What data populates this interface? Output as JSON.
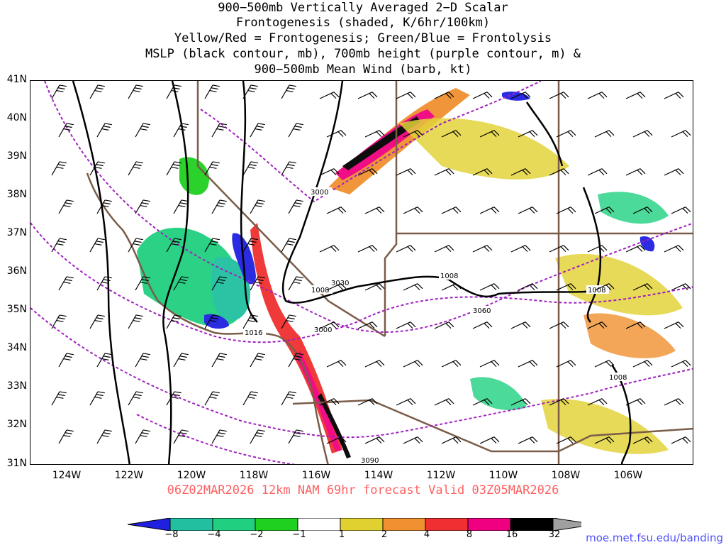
{
  "title": {
    "lines": [
      "900−500mb Vertically Averaged 2−D Scalar",
      "Frontogenesis (shaded, K/6hr/100km)",
      "Yellow/Red = Frontogenesis;  Green/Blue = Frontolysis",
      "MSLP (black contour, mb), 700mb height (purple contour, m) &",
      "900−500mb Mean Wind (barb, kt)"
    ]
  },
  "map": {
    "lat_labels": [
      "41N",
      "40N",
      "39N",
      "38N",
      "37N",
      "36N",
      "35N",
      "34N",
      "33N",
      "32N",
      "31N"
    ],
    "lon_labels": [
      "124W",
      "122W",
      "120W",
      "118W",
      "116W",
      "114W",
      "112W",
      "110W",
      "108W",
      "106W"
    ],
    "contour_labels": {
      "mslp": [
        "1008",
        "1008",
        "1008",
        "1008",
        "1016"
      ],
      "height": [
        "3000",
        "3030",
        "3000",
        "3060",
        "3090"
      ]
    },
    "colors": {
      "border": "#7a5c48",
      "mslp": "#000000",
      "height": "#a020c0",
      "barb": "#000000"
    }
  },
  "valid_line": "06Z02MAR2026 12km NAM 69hr forecast Valid 03Z05MAR2026",
  "valid_color": "#ff6060",
  "colorbar": {
    "labels": [
      "−8",
      "−4",
      "−2",
      "−1",
      "1",
      "2",
      "4",
      "8",
      "16",
      "32"
    ],
    "colors": [
      "#2020e0",
      "#20c0a0",
      "#20d080",
      "#20d020",
      "#ffffff",
      "#e0d030",
      "#f09030",
      "#f03030",
      "#f00080",
      "#000000",
      "#a0a0a0"
    ]
  },
  "credit": "moe.met.fsu.edu/banding",
  "credit_color": "#5050ff"
}
